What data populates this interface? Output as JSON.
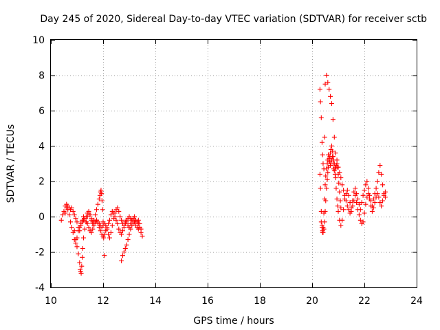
{
  "chart_data": {
    "type": "scatter",
    "title": "Day 245 of 2020, Sidereal Day-to-day VTEC variation (SDTVAR) for receiver sctb",
    "xlabel": "GPS time / hours",
    "ylabel": "SDTVAR / TECUs",
    "xlim": [
      10,
      24
    ],
    "ylim": [
      -4,
      10
    ],
    "xticks": [
      10,
      12,
      14,
      16,
      18,
      20,
      22,
      24
    ],
    "yticks": [
      -4,
      -2,
      0,
      2,
      4,
      6,
      8,
      10
    ],
    "xtick_labels": [
      "10",
      "12",
      "14",
      "16",
      "18",
      "20",
      "22",
      "24"
    ],
    "ytick_labels": [
      "-4",
      "-2",
      "0",
      "2",
      "4",
      "6",
      "8",
      "10"
    ],
    "grid": true,
    "marker": "+",
    "color": "#ff0000",
    "series": [
      {
        "name": "SDTVAR",
        "x": [
          10.4,
          10.45,
          10.5,
          10.55,
          10.6,
          10.65,
          10.7,
          10.75,
          10.8,
          10.85,
          10.9,
          10.95,
          11.0,
          11.05,
          11.1,
          11.15,
          11.2,
          11.25,
          11.3,
          11.35,
          11.4,
          11.45,
          11.5,
          11.55,
          11.6,
          11.65,
          11.7,
          11.75,
          11.8,
          11.85,
          11.9,
          11.95,
          12.0,
          12.05,
          12.1,
          12.15,
          12.2,
          12.25,
          12.3,
          12.35,
          12.4,
          12.45,
          12.5,
          12.55,
          12.6,
          12.65,
          12.7,
          12.75,
          12.8,
          12.85,
          12.9,
          12.95,
          13.0,
          13.05,
          13.1,
          13.15,
          13.2,
          13.25,
          13.3,
          13.35,
          13.4,
          13.45,
          10.55,
          10.6,
          10.65,
          10.7,
          10.75,
          10.8,
          10.85,
          10.9,
          10.95,
          11.0,
          11.05,
          11.1,
          11.15,
          11.2,
          11.25,
          11.3,
          11.35,
          11.4,
          11.45,
          11.5,
          11.55,
          11.6,
          11.65,
          11.7,
          11.75,
          11.8,
          11.85,
          11.9,
          11.95,
          12.0,
          12.05,
          12.1,
          12.15,
          12.2,
          12.25,
          12.3,
          12.35,
          12.4,
          12.45,
          12.5,
          12.55,
          12.6,
          12.65,
          12.7,
          12.75,
          12.8,
          12.85,
          12.9,
          12.95,
          13.0,
          13.05,
          13.1,
          13.15,
          13.2,
          13.25,
          13.3,
          13.35,
          13.4,
          10.9,
          10.95,
          11.0,
          11.05,
          11.1,
          11.12,
          11.14,
          11.16,
          11.18,
          11.2,
          11.22,
          11.25,
          11.3,
          11.35,
          11.4,
          11.45,
          11.5,
          11.55,
          11.6,
          11.65,
          11.7,
          11.75,
          11.8,
          11.85,
          11.88,
          11.9,
          11.92,
          11.94,
          11.96,
          11.98,
          12.0,
          12.02,
          12.05,
          12.7,
          12.75,
          12.8,
          12.85,
          12.9,
          12.95,
          13.0,
          13.05,
          13.1,
          13.15,
          13.2,
          13.25,
          13.3,
          13.35,
          13.4,
          13.45,
          13.5,
          20.3,
          20.32,
          20.35,
          20.38,
          20.4,
          20.42,
          20.45,
          20.48,
          20.5,
          20.52,
          20.55,
          20.58,
          20.6,
          20.62,
          20.65,
          20.68,
          20.7,
          20.72,
          20.75,
          20.78,
          20.8,
          20.82,
          20.85,
          20.88,
          20.9,
          20.92,
          20.95,
          20.98,
          21.0,
          21.05,
          21.1,
          21.15,
          21.2,
          21.25,
          21.3,
          21.35,
          21.4,
          21.45,
          21.5,
          21.55,
          21.6,
          21.65,
          21.7,
          21.75,
          21.8,
          21.85,
          21.9,
          21.95,
          22.0,
          22.05,
          22.1,
          22.15,
          22.2,
          22.25,
          22.3,
          22.35,
          22.4,
          22.45,
          22.5,
          22.55,
          22.6,
          22.65,
          22.7,
          22.75,
          22.8,
          20.3,
          20.32,
          20.35,
          20.38,
          20.4,
          20.42,
          20.45,
          20.48,
          20.5,
          20.55,
          20.6,
          20.65,
          20.7,
          20.75,
          20.8,
          20.85,
          20.9,
          20.95,
          21.0,
          21.05,
          21.1,
          21.15,
          21.2,
          21.25,
          21.3,
          21.35,
          21.4,
          21.45,
          21.5,
          21.55,
          21.6,
          21.65,
          21.7,
          21.75,
          21.8,
          21.85,
          21.9,
          21.95,
          22.0,
          22.05,
          22.1,
          22.15,
          22.2,
          22.25,
          22.3,
          22.35,
          22.4,
          22.45,
          22.5,
          22.55,
          22.6,
          22.65,
          22.7,
          22.75,
          22.8,
          20.35,
          20.38,
          20.4,
          20.42,
          20.45,
          20.48,
          20.5,
          20.52,
          20.55,
          20.58,
          20.6,
          20.62,
          20.65,
          20.68,
          20.7,
          20.72,
          20.75,
          20.78,
          20.8,
          20.82,
          20.85,
          20.88,
          20.9,
          20.92,
          20.95,
          20.98,
          21.0,
          21.02,
          21.05,
          21.08,
          21.1
        ],
        "y": [
          -0.2,
          0.1,
          0.3,
          0.6,
          0.7,
          0.4,
          0.1,
          -0.3,
          -0.6,
          -0.9,
          -1.3,
          -1.5,
          -1.2,
          -0.8,
          -0.6,
          -0.4,
          -0.3,
          -0.2,
          -0.1,
          0.0,
          0.2,
          0.3,
          0.1,
          -0.1,
          -0.3,
          -0.4,
          -0.3,
          -0.2,
          -0.3,
          -0.4,
          -0.5,
          -0.6,
          -0.5,
          -0.4,
          -0.5,
          -0.7,
          -1.0,
          -1.2,
          -0.9,
          -0.5,
          -0.1,
          0.2,
          0.4,
          0.5,
          0.3,
          0.0,
          -0.2,
          -0.4,
          -0.5,
          -0.3,
          -0.2,
          -0.1,
          0.0,
          -0.1,
          -0.2,
          -0.1,
          0.0,
          -0.2,
          -0.3,
          -0.2,
          -0.4,
          -0.7,
          0.2,
          0.5,
          0.6,
          0.5,
          0.4,
          0.5,
          0.3,
          0.1,
          -0.1,
          -0.3,
          -0.6,
          -0.8,
          -0.5,
          -0.2,
          0.0,
          -0.1,
          -0.3,
          -0.4,
          -0.6,
          -0.8,
          -0.9,
          -0.7,
          -0.5,
          -0.3,
          -0.2,
          -0.4,
          -0.6,
          -0.8,
          -1.0,
          -1.1,
          -1.0,
          -0.8,
          -0.6,
          -0.4,
          -0.2,
          0.1,
          0.3,
          0.2,
          0.0,
          -0.2,
          -0.4,
          -0.7,
          -0.9,
          -1.0,
          -0.8,
          -0.6,
          -0.4,
          -0.3,
          -0.5,
          -0.6,
          -0.4,
          -0.2,
          -0.1,
          -0.3,
          -0.5,
          -0.6,
          -0.7,
          -0.6,
          -0.8,
          -1.3,
          -1.7,
          -2.1,
          -2.6,
          -3.0,
          -3.1,
          -3.2,
          -2.8,
          -2.3,
          -1.8,
          -1.2,
          -0.7,
          -0.3,
          0.0,
          0.2,
          0.1,
          -0.2,
          -0.4,
          -0.2,
          0.1,
          0.4,
          0.7,
          1.0,
          1.2,
          1.4,
          1.5,
          1.3,
          0.9,
          0.4,
          -0.3,
          -1.2,
          -2.2,
          -2.5,
          -2.2,
          -2.0,
          -1.8,
          -1.6,
          -1.3,
          -1.0,
          -0.7,
          -0.5,
          -0.4,
          -0.3,
          -0.2,
          -0.3,
          -0.4,
          -0.6,
          -0.9,
          -1.1,
          2.4,
          1.6,
          0.3,
          -0.5,
          -0.9,
          -0.6,
          0.2,
          1.0,
          1.8,
          2.3,
          2.7,
          3.0,
          3.2,
          3.5,
          3.3,
          3.1,
          2.9,
          3.0,
          3.2,
          3.4,
          3.0,
          2.7,
          2.6,
          2.4,
          2.2,
          1.6,
          1.0,
          0.6,
          0.3,
          -0.2,
          -0.5,
          -0.2,
          0.4,
          1.0,
          1.3,
          1.5,
          1.2,
          0.8,
          0.5,
          0.9,
          1.4,
          1.6,
          1.3,
          1.0,
          0.7,
          0.4,
          0.8,
          1.2,
          1.5,
          1.8,
          2.0,
          1.6,
          1.2,
          0.9,
          0.6,
          1.0,
          1.3,
          1.6,
          2.0,
          2.5,
          2.9,
          2.4,
          1.8,
          1.3,
          1.1,
          7.2,
          6.5,
          5.6,
          4.2,
          3.5,
          3.0,
          2.7,
          4.5,
          7.5,
          8.0,
          7.6,
          7.2,
          6.8,
          6.4,
          5.5,
          4.5,
          3.6,
          3.2,
          2.8,
          2.5,
          2.2,
          1.8,
          1.5,
          1.2,
          0.9,
          0.6,
          0.4,
          0.2,
          0.3,
          0.6,
          0.9,
          1.2,
          0.8,
          0.4,
          0.1,
          -0.2,
          -0.4,
          -0.3,
          0.2,
          0.7,
          1.1,
          1.3,
          1.0,
          0.6,
          0.3,
          0.5,
          0.8,
          1.1,
          1.3,
          1.1,
          0.8,
          0.6,
          0.9,
          1.2,
          1.4,
          -0.3,
          -0.6,
          -0.8,
          -0.9,
          -0.7,
          -0.3,
          0.3,
          0.9,
          1.6,
          2.1,
          2.5,
          2.8,
          3.1,
          3.4,
          3.6,
          3.8,
          4.0,
          3.7,
          3.4,
          3.2,
          3.0,
          2.8,
          2.7,
          2.9,
          3.0,
          2.8,
          2.4,
          1.9,
          1.4,
          0.9,
          0.5
        ]
      }
    ]
  }
}
